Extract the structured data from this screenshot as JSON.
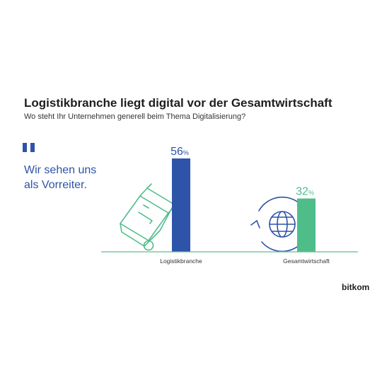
{
  "header": {
    "title": "Logistikbranche liegt digital vor der Gesamtwirtschaft",
    "subtitle": "Wo steht Ihr Unternehmen generell beim Thema Digitalisierung?"
  },
  "quote": {
    "text_line1": "Wir sehen uns",
    "text_line2": "als Vorreiter."
  },
  "brand": "bitkom",
  "colors": {
    "logistik": "#2d54a8",
    "gesamt": "#4fbd8a",
    "baseline": "#5fbf8f",
    "icon": "#2d54a8",
    "icon_alt": "#4fbd8a"
  },
  "icons": [
    "quote-icon",
    "hand-truck-icon",
    "globe-cycle-icon"
  ],
  "chart_data": {
    "type": "bar",
    "categories": [
      "Logistikbranche",
      "Gesamtwirtschaft"
    ],
    "values": [
      56,
      32
    ],
    "value_labels": [
      "56",
      "32"
    ],
    "unit": "%",
    "ylim": [
      0,
      60
    ],
    "grid": false,
    "legend": "none"
  }
}
